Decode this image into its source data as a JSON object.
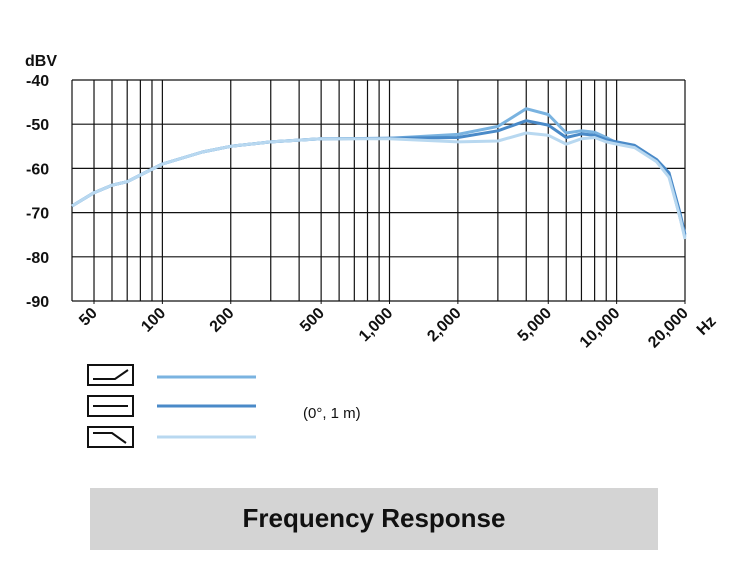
{
  "chart_data": {
    "type": "line",
    "title": "Frequency Response",
    "y_label": "dBV",
    "x_label": "Hz",
    "annotation": "(0°, 1 m)",
    "log_x": true,
    "x": [
      40,
      50,
      60,
      70,
      80,
      100,
      150,
      200,
      300,
      500,
      1000,
      2000,
      3000,
      4000,
      5000,
      6000,
      7000,
      8000,
      9000,
      10000,
      12000,
      15000,
      17000,
      19000,
      20000
    ],
    "series": [
      {
        "color": "#7ab3e0",
        "values": [
          -68.5,
          -65.5,
          -63.8,
          -63,
          -61.5,
          -59,
          -56.3,
          -55,
          -54,
          -53.3,
          -53.2,
          -52.3,
          -50.5,
          -46.5,
          -47.8,
          -52,
          -51.5,
          -51.8,
          -53,
          -54.2,
          -55,
          -58,
          -61.5,
          -71,
          -75.5
        ]
      },
      {
        "color": "#4a8ac8",
        "values": [
          -68.5,
          -65.5,
          -63.8,
          -63,
          -61.5,
          -59,
          -56.3,
          -55,
          -54,
          -53.3,
          -53.2,
          -53,
          -51.5,
          -49.2,
          -50.2,
          -53,
          -52.2,
          -52.5,
          -53.5,
          -54,
          -54.8,
          -58,
          -61,
          -70,
          -75
        ]
      },
      {
        "color": "#b8d8f0",
        "values": [
          -68.5,
          -65.5,
          -63.8,
          -63,
          -61.5,
          -59,
          -56.3,
          -55,
          -54,
          -53.3,
          -53.3,
          -54,
          -53.8,
          -52,
          -52.5,
          -54.5,
          -53.3,
          -53,
          -54,
          -54.5,
          -55.3,
          -58.5,
          -62,
          -71,
          -76
        ]
      }
    ],
    "xlim": [
      40,
      20000
    ],
    "ylim": [
      -90,
      -40
    ],
    "yticks": [
      -40,
      -50,
      -60,
      -70,
      -80,
      -90
    ],
    "xticks": [
      50,
      100,
      200,
      500,
      {
        "value": 1000,
        "label": "1,000"
      },
      {
        "value": 2000,
        "label": "2,000"
      },
      {
        "value": 5000,
        "label": "5,000"
      },
      {
        "value": 10000,
        "label": "10,000"
      },
      {
        "value": 20000,
        "label": "20,000"
      }
    ],
    "x_grid": [
      40,
      50,
      60,
      70,
      80,
      90,
      100,
      200,
      300,
      400,
      500,
      600,
      700,
      800,
      900,
      1000,
      2000,
      3000,
      4000,
      5000,
      6000,
      7000,
      8000,
      9000,
      10000,
      20000
    ],
    "grid": true
  }
}
